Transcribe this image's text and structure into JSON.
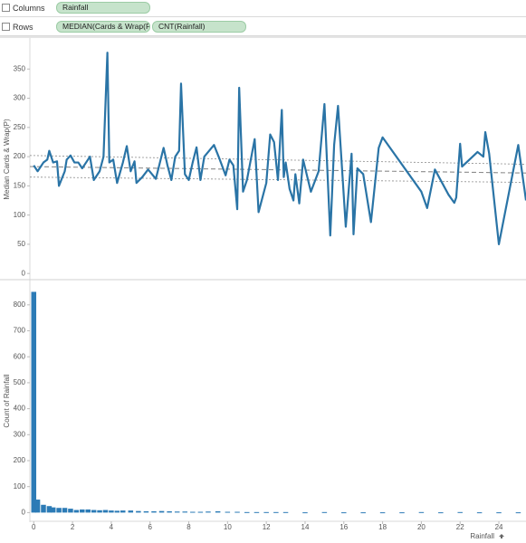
{
  "shelves": {
    "columns": {
      "label": "Columns",
      "pills": [
        "Rainfall"
      ]
    },
    "rows": {
      "label": "Rows",
      "pills": [
        "MEDIAN(Cards & Wrap(P...",
        "CNT(Rainfall)"
      ]
    }
  },
  "chart_data": [
    {
      "type": "line",
      "y_label": "Median Cards & Wrap(P)",
      "color": "#2a74a6",
      "xlim": [
        -0.2,
        25.4
      ],
      "ylim": [
        -9,
        400
      ],
      "yticks": [
        0,
        50,
        100,
        150,
        200,
        250,
        300,
        350
      ],
      "x": [
        0,
        0.2,
        0.5,
        0.7,
        0.8,
        1.0,
        1.2,
        1.3,
        1.6,
        1.7,
        1.9,
        2.1,
        2.3,
        2.5,
        2.7,
        2.9,
        3.1,
        3.4,
        3.6,
        3.8,
        3.9,
        4.1,
        4.3,
        4.6,
        4.8,
        5.0,
        5.2,
        5.3,
        5.6,
        5.9,
        6.1,
        6.3,
        6.7,
        6.9,
        7.1,
        7.3,
        7.5,
        7.6,
        7.8,
        8.0,
        8.2,
        8.4,
        8.6,
        8.8,
        9.3,
        9.6,
        9.9,
        10.1,
        10.3,
        10.5,
        10.6,
        10.8,
        11.0,
        11.4,
        11.6,
        12.0,
        12.2,
        12.4,
        12.6,
        12.8,
        12.9,
        13.0,
        13.2,
        13.4,
        13.5,
        13.7,
        13.9,
        14.3,
        14.7,
        15.0,
        15.3,
        15.5,
        15.7,
        16.1,
        16.4,
        16.5,
        16.7,
        17.0,
        17.4,
        17.8,
        18.0,
        20.0,
        20.3,
        20.7,
        21.4,
        21.7,
        21.8,
        22.0,
        22.1,
        22.9,
        23.2,
        23.3,
        23.5,
        24.0,
        25.0,
        25.4
      ],
      "values": [
        185,
        175,
        190,
        195,
        210,
        190,
        192,
        150,
        175,
        195,
        202,
        190,
        190,
        180,
        190,
        200,
        160,
        175,
        200,
        378,
        190,
        195,
        155,
        190,
        218,
        175,
        192,
        155,
        165,
        178,
        170,
        162,
        215,
        185,
        160,
        200,
        210,
        325,
        170,
        160,
        190,
        216,
        160,
        200,
        220,
        195,
        168,
        195,
        185,
        110,
        318,
        140,
        160,
        230,
        105,
        155,
        238,
        225,
        160,
        280,
        165,
        190,
        145,
        125,
        170,
        120,
        195,
        140,
        175,
        290,
        65,
        220,
        287,
        80,
        205,
        67,
        180,
        170,
        88,
        215,
        233,
        140,
        112,
        178,
        135,
        121,
        130,
        222,
        183,
        208,
        200,
        242,
        205,
        50,
        220,
        125
      ],
      "trend_x": [
        -0.2,
        25.4
      ],
      "trend_lines": [
        {
          "values": [
            183,
            172
          ]
        },
        {
          "values": [
            202,
            187
          ]
        },
        {
          "values": [
            165,
            156
          ]
        }
      ],
      "trend_color": "#8c8c8c"
    },
    {
      "type": "bar",
      "y_label": "Count of Rainfall",
      "x_label": "Rainfall",
      "color": "#2c7bb6",
      "xlim": [
        -0.2,
        25.4
      ],
      "ylim": [
        -30,
        890
      ],
      "xticks": [
        0,
        2,
        4,
        6,
        8,
        10,
        12,
        14,
        16,
        18,
        20,
        22,
        24
      ],
      "yticks": [
        0,
        100,
        200,
        300,
        400,
        500,
        600,
        700,
        800
      ],
      "x": [
        0,
        0.2,
        0.5,
        0.8,
        1.0,
        1.3,
        1.6,
        1.9,
        2.2,
        2.5,
        2.8,
        3.1,
        3.4,
        3.7,
        4.0,
        4.3,
        4.6,
        5.0,
        5.4,
        5.8,
        6.2,
        6.6,
        7.0,
        7.4,
        7.8,
        8.2,
        8.6,
        9.0,
        9.5,
        10.0,
        10.5,
        11.0,
        11.5,
        12.0,
        12.5,
        13.0,
        14.0,
        15.0,
        16.0,
        17.0,
        18.0,
        19.0,
        20.0,
        21.0,
        22.0,
        23.0,
        24.0,
        25.0
      ],
      "values": [
        850,
        50,
        30,
        25,
        20,
        18,
        18,
        15,
        10,
        12,
        12,
        10,
        9,
        10,
        8,
        7,
        8,
        8,
        6,
        5,
        5,
        6,
        5,
        4,
        4,
        3,
        3,
        4,
        5,
        3,
        3,
        2,
        2,
        2,
        2,
        2,
        1,
        2,
        1,
        1,
        1,
        1,
        2,
        1,
        2,
        1,
        1,
        1
      ]
    }
  ]
}
